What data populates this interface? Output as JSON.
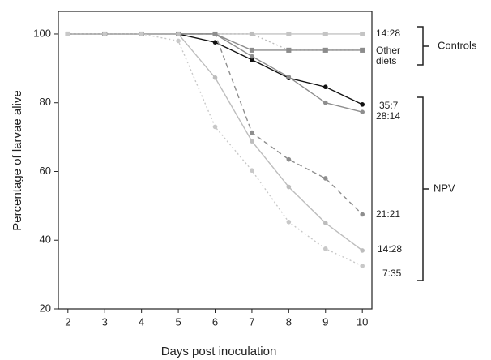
{
  "chart_data": {
    "type": "line",
    "x_label": "Days post inoculation",
    "y_label": "Percentage of larvae alive",
    "x": [
      2,
      3,
      4,
      5,
      6,
      7,
      8,
      9,
      10
    ],
    "xlim": [
      1.74,
      10.26
    ],
    "ylim": [
      20,
      106.6
    ],
    "xticks": [
      2,
      3,
      4,
      5,
      6,
      7,
      8,
      9,
      10
    ],
    "yticks": [
      20,
      40,
      60,
      80,
      100
    ],
    "series": [
      {
        "name": "14:28",
        "color": "#c4c4c4",
        "dash": "solid",
        "marker": "square",
        "values": [
          100,
          100,
          100,
          100,
          100,
          100,
          100,
          100,
          100
        ]
      },
      {
        "color": "#bdbdbd",
        "dash": "dotted",
        "marker": "square",
        "values": [
          100,
          100,
          100,
          100,
          100,
          100,
          95.3,
          95.3,
          95.3
        ]
      },
      {
        "name": "Other diets",
        "color": "#8c8c8c",
        "dash": "solid",
        "marker": "square",
        "values": [
          100,
          100,
          100,
          100,
          100,
          95.3,
          95.3,
          95.3,
          95.3
        ]
      },
      {
        "name": "35:7",
        "color": "#111111",
        "dash": "solid",
        "marker": "circle",
        "values": [
          100,
          100,
          100,
          100,
          97.6,
          92.5,
          87.2,
          84.6,
          79.5
        ]
      },
      {
        "name": "28:14",
        "color": "#8e8e8e",
        "dash": "solid",
        "marker": "circle",
        "values": [
          100,
          100,
          100,
          100,
          100,
          93.5,
          87.5,
          80,
          77.3
        ]
      },
      {
        "name": "21:21",
        "color": "#8e8e8e",
        "dash": "dashed",
        "marker": "circle",
        "values": [
          100,
          100,
          100,
          100,
          100,
          71.3,
          63.5,
          58,
          47.5
        ]
      },
      {
        "name": "14:28",
        "color": "#bdbdbd",
        "dash": "solid",
        "marker": "circle",
        "values": [
          100,
          100,
          100,
          100,
          87.3,
          68.8,
          55.5,
          45,
          37
        ]
      },
      {
        "name": "7:35",
        "color": "#c8c8c8",
        "dash": "dotted",
        "marker": "circle",
        "values": [
          100,
          100,
          100,
          98,
          73,
          60.3,
          45.3,
          37.5,
          32.5
        ]
      }
    ],
    "annotations": [
      "Controls",
      "NPV"
    ]
  }
}
